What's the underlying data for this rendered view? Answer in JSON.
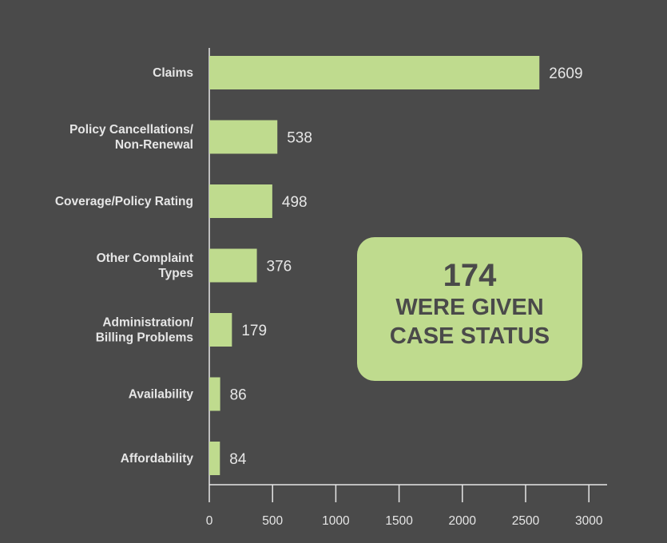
{
  "chart_data": {
    "type": "bar",
    "orientation": "horizontal",
    "categories": [
      [
        "Claims"
      ],
      [
        "Policy Cancellations/",
        "Non-Renewal"
      ],
      [
        "Coverage/Policy Rating"
      ],
      [
        "Other Complaint",
        "Types"
      ],
      [
        "Administration/",
        "Billing Problems"
      ],
      [
        "Availability"
      ],
      [
        "Affordability"
      ]
    ],
    "values": [
      2609,
      538,
      498,
      376,
      179,
      86,
      84
    ],
    "xlim": [
      0,
      3000
    ],
    "xticks": [
      0,
      500,
      1000,
      1500,
      2000,
      2500,
      3000
    ],
    "bar_color": "#bfdb8e",
    "grid": false,
    "legend": "none"
  },
  "callout": {
    "number": "174",
    "line1": "WERE GIVEN",
    "line2": "CASE STATUS",
    "background": "#bfdb8e",
    "text_color": "#4a4a4a"
  },
  "colors": {
    "background": "#4a4a4a",
    "text": "#e6e6e6"
  }
}
